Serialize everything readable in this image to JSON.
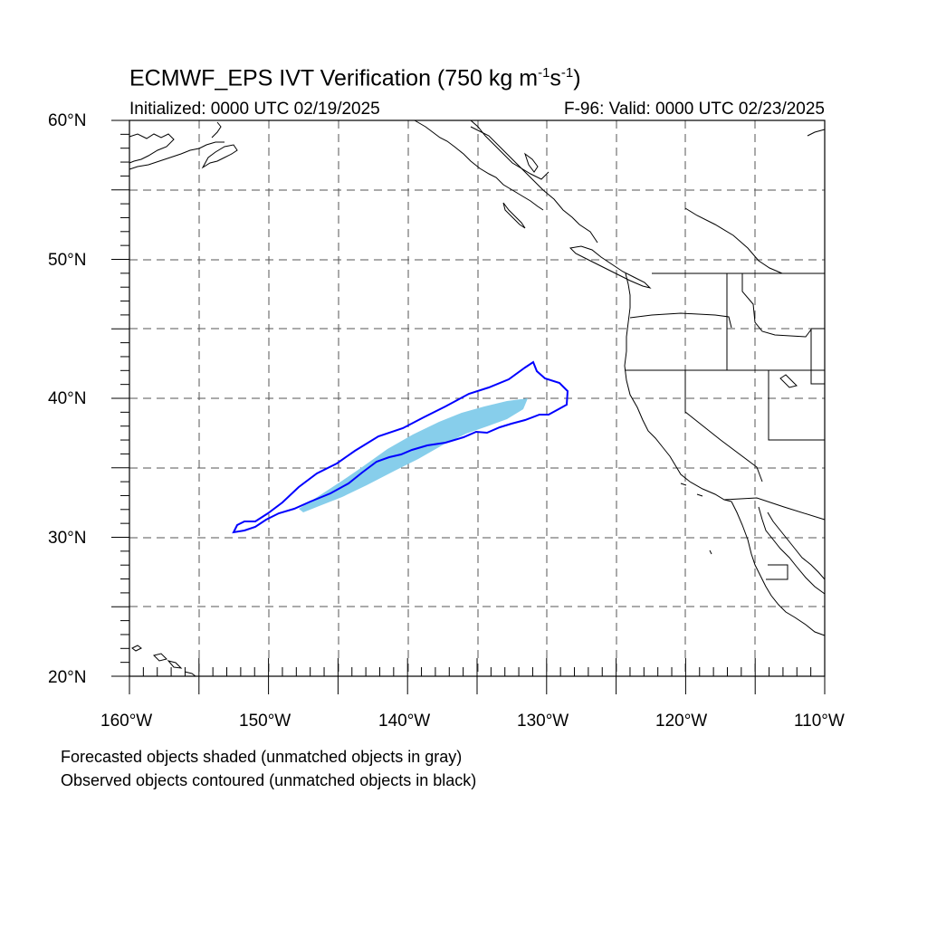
{
  "header": {
    "title_main": "ECMWF_EPS IVT Verification (750 kg m",
    "title_exp1": "-1",
    "title_mid": "s",
    "title_exp2": "-1",
    "title_end": ")",
    "initialized": "Initialized: 0000 UTC 02/19/2025",
    "valid": "F-96: Valid: 0000 UTC 02/23/2025"
  },
  "axes": {
    "lat_labels": [
      "60°N",
      "50°N",
      "40°N",
      "30°N",
      "20°N"
    ],
    "lon_labels": [
      "160°W",
      "150°W",
      "140°W",
      "130°W",
      "120°W",
      "110°W"
    ]
  },
  "footer": {
    "note1": "Forecasted objects shaded (unmatched objects in gray)",
    "note2": "Observed objects contoured (unmatched objects in black)"
  },
  "colors": {
    "forecast_fill": "#87ceeb",
    "observed_contour": "#0000ff",
    "grid": "#555555",
    "coast": "#000000"
  }
}
